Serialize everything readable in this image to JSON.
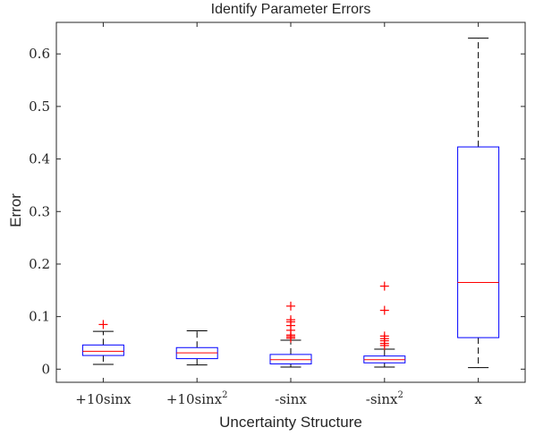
{
  "chart_data": {
    "type": "boxplot",
    "title": "Identify Parameter Errors",
    "xlabel": "Uncertainty Structure",
    "ylabel": "Error",
    "ylim": [
      -0.025,
      0.66
    ],
    "yticks": [
      0,
      0.1,
      0.2,
      0.3,
      0.4,
      0.5,
      0.6
    ],
    "ytick_labels": [
      "0",
      "0.1",
      "0.2",
      "0.3",
      "0.4",
      "0.5",
      "0.6"
    ],
    "categories": [
      "+10sinx",
      "+10sinx²",
      "-sinx",
      "-sinx²",
      "x"
    ],
    "category_labels": [
      {
        "base": "+10sinx",
        "sup": ""
      },
      {
        "base": "+10sinx",
        "sup": "2"
      },
      {
        "base": "-sinx",
        "sup": ""
      },
      {
        "base": "-sinx",
        "sup": "2"
      },
      {
        "base": "x",
        "sup": ""
      }
    ],
    "boxes": [
      {
        "category": "+10sinx",
        "whisker_low": 0.009,
        "q1": 0.026,
        "median": 0.034,
        "q3": 0.046,
        "whisker_high": 0.072,
        "outliers": [
          0.085
        ]
      },
      {
        "category": "+10sinx²",
        "whisker_low": 0.008,
        "q1": 0.02,
        "median": 0.031,
        "q3": 0.041,
        "whisker_high": 0.073,
        "outliers": []
      },
      {
        "category": "-sinx",
        "whisker_low": 0.004,
        "q1": 0.01,
        "median": 0.018,
        "q3": 0.028,
        "whisker_high": 0.055,
        "outliers": [
          0.059,
          0.062,
          0.065,
          0.074,
          0.083,
          0.09,
          0.094,
          0.12
        ]
      },
      {
        "category": "-sinx²",
        "whisker_low": 0.004,
        "q1": 0.012,
        "median": 0.018,
        "q3": 0.025,
        "whisker_high": 0.038,
        "outliers": [
          0.045,
          0.049,
          0.054,
          0.058,
          0.063,
          0.112,
          0.158
        ]
      },
      {
        "category": "x",
        "whisker_low": 0.003,
        "q1": 0.06,
        "median": 0.165,
        "q3": 0.423,
        "whisker_high": 0.63,
        "outliers": []
      }
    ],
    "colors": {
      "box": "#0000ff",
      "median": "#ff0000",
      "outlier": "#ff0000",
      "whisker": "#000000",
      "axis": "#262626"
    },
    "grid": false,
    "legend": "none"
  }
}
